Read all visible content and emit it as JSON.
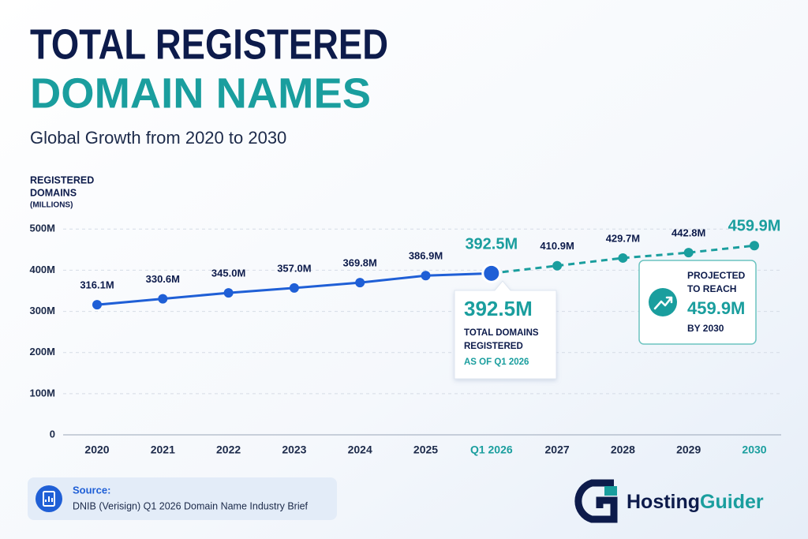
{
  "chart_data": {
    "type": "line",
    "title": [
      "TOTAL REGISTERED",
      "DOMAIN NAMES"
    ],
    "subtitle": "Global Growth from 2020 to 2030",
    "ylabel": [
      "REGISTERED",
      "DOMAINS"
    ],
    "yunit": "(MILLIONS)",
    "categories": [
      "2020",
      "2021",
      "2022",
      "2023",
      "2024",
      "2025",
      "Q1 2026",
      "2027",
      "2028",
      "2029",
      "2030"
    ],
    "values": [
      316.1,
      330.6,
      345.0,
      357.0,
      369.8,
      386.9,
      392.5,
      410.9,
      429.7,
      442.8,
      459.9
    ],
    "value_labels": [
      "316.1M",
      "330.6M",
      "345.0M",
      "357.0M",
      "369.8M",
      "386.9M",
      "392.5M",
      "410.9M",
      "429.7M",
      "442.8M",
      "459.9M"
    ],
    "color": "#1f5fd6",
    "projected_color": "#1a9e9e",
    "dashed_from": 6,
    "highlight": [
      6,
      10
    ],
    "ylim": [
      0,
      560
    ],
    "yticks": [
      0,
      {
        "value": 100,
        "label": "100M"
      },
      {
        "value": 200,
        "label": "200M"
      },
      {
        "value": 300,
        "label": "300M"
      },
      {
        "value": 400,
        "label": "400M"
      },
      {
        "value": 500,
        "label": "500M"
      }
    ],
    "grid": true,
    "callout": {
      "value_label": "392.5M",
      "text": [
        "TOTAL DOMAINS",
        "REGISTERED"
      ],
      "subtext": "AS OF Q1 2026"
    },
    "projection": {
      "text": [
        "PROJECTED",
        "TO REACH"
      ],
      "value_label": "459.9M",
      "subtext": "BY 2030"
    }
  },
  "source": {
    "label": "Source:",
    "text": "DNIB (Verisign) Q1 2026 Domain Name Industry Brief"
  },
  "brand": [
    "Hosting",
    "Guider"
  ]
}
